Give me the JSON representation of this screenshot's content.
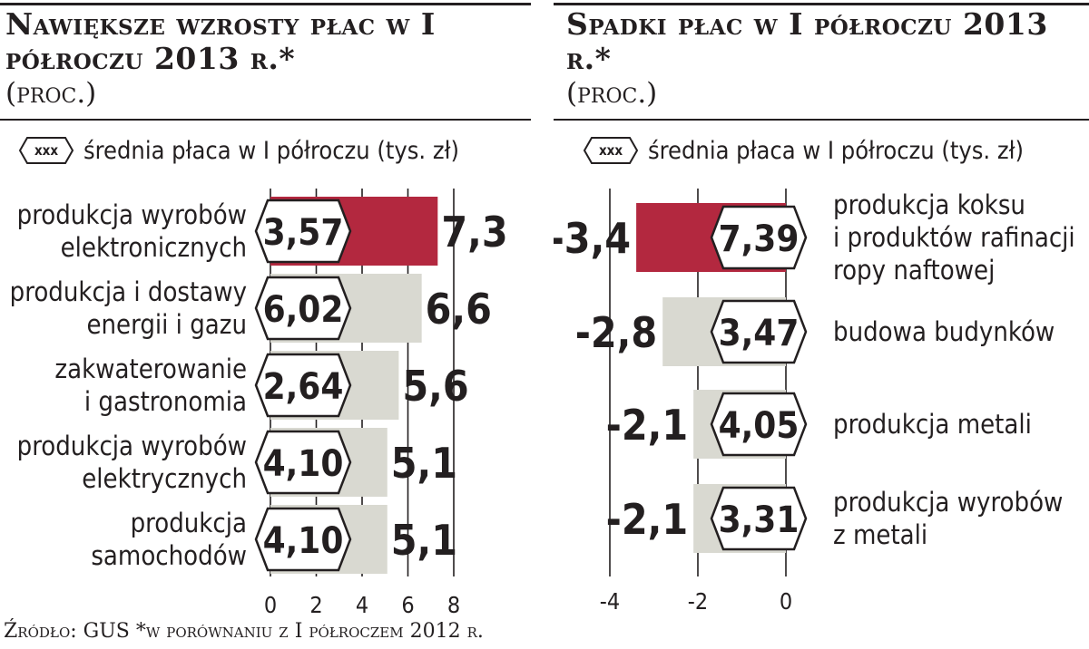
{
  "legend_text": "średnia płaca w I półroczu (tys. zł)",
  "legend_marker": "xxx",
  "source": "Źródło: GUS *w porównaniu z I półroczem 2012 r.",
  "colors": {
    "highlight": "#b3283f",
    "bar": "#d9d9d1",
    "text": "#231f20",
    "axis": "#231f20"
  },
  "chart_data": [
    {
      "type": "bar",
      "orientation": "horizontal",
      "title": "Nawiększe wzrosty płac w I półroczu 2013 r.*",
      "subtitle": "(proc.)",
      "categories": [
        "produkcja wyrobów elektronicznych",
        "produkcja i dostawy energii i gazu",
        "zakwaterowanie i gastronomia",
        "produkcja wyrobów elektrycznych",
        "produkcja samochodów"
      ],
      "category_lines": [
        [
          "produkcja wyrobów",
          "elektronicznych"
        ],
        [
          "produkcja i dostawy",
          "energii i gazu"
        ],
        [
          "zakwaterowanie",
          "i gastronomia"
        ],
        [
          "produkcja wyrobów",
          "elektrycznych"
        ],
        [
          "produkcja",
          "samochodów"
        ]
      ],
      "values": [
        7.3,
        6.6,
        5.6,
        5.1,
        5.1
      ],
      "value_labels": [
        "7,3",
        "6,6",
        "5,6",
        "5,1",
        "5,1"
      ],
      "avg_salary": [
        "3,57",
        "6,02",
        "2,64",
        "4,10",
        "4,10"
      ],
      "highlight_index": 0,
      "xlim": [
        0,
        8
      ],
      "ticks": [
        0,
        2,
        4,
        6,
        8
      ],
      "tick_labels": [
        "0",
        "2",
        "4",
        "6",
        "8"
      ],
      "grid": true
    },
    {
      "type": "bar",
      "orientation": "horizontal",
      "title": "Spadki płac w I półroczu 2013 r.*",
      "subtitle": "(proc.)",
      "categories": [
        "produkcja koksu i produktów rafinacji ropy naftowej",
        "budowa budynków",
        "produkcja metali",
        "produkcja wyrobów z metali"
      ],
      "category_lines": [
        [
          "produkcja koksu",
          "i produktów rafinacji",
          "ropy naftowej"
        ],
        [
          "budowa budynków"
        ],
        [
          "produkcja metali"
        ],
        [
          "produkcja wyrobów",
          "z metali"
        ]
      ],
      "values": [
        -3.4,
        -2.8,
        -2.1,
        -2.1
      ],
      "value_labels": [
        "-3,4",
        "-2,8",
        "-2,1",
        "-2,1"
      ],
      "avg_salary": [
        "7,39",
        "3,47",
        "4,05",
        "3,31"
      ],
      "highlight_index": 0,
      "xlim": [
        -4,
        0
      ],
      "ticks": [
        -4,
        -2,
        0
      ],
      "tick_labels": [
        "-4",
        "-2",
        "0"
      ],
      "grid": true
    }
  ]
}
